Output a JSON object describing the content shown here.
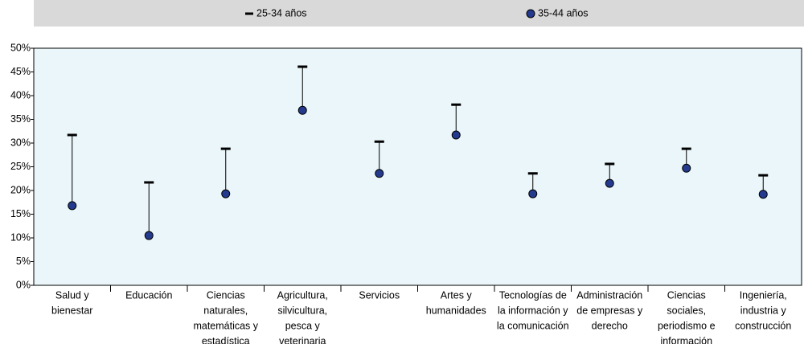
{
  "chart_data": {
    "type": "dot-range",
    "categories": [
      [
        "Salud y",
        "bienestar"
      ],
      [
        "Educación"
      ],
      [
        "Ciencias",
        "naturales,",
        "matemáticas y",
        "estadística"
      ],
      [
        "Agricultura,",
        "silvicultura,",
        "pesca y",
        "veterinaria"
      ],
      [
        "Servicios"
      ],
      [
        "Artes y",
        "humanidades"
      ],
      [
        "Tecnologías de",
        "la información y",
        "la comunicación"
      ],
      [
        "Administración",
        "de empresas y",
        "derecho"
      ],
      [
        "Ciencias",
        "sociales,",
        "periodismo e",
        "información"
      ],
      [
        "Ingeniería,",
        "industria y",
        "construcción"
      ]
    ],
    "series": [
      {
        "name": "25-34 años",
        "color": "#000000",
        "marker": "dash",
        "values": [
          31.7,
          21.7,
          28.8,
          46.1,
          30.3,
          38.1,
          23.6,
          25.6,
          28.8,
          23.2
        ]
      },
      {
        "name": "35-44 años",
        "color": "#233a8e",
        "marker": "circle",
        "values": [
          16.8,
          10.5,
          19.3,
          36.9,
          23.6,
          31.7,
          19.3,
          21.5,
          24.7,
          19.2
        ]
      }
    ],
    "ylim": [
      0,
      50
    ],
    "yticks": [
      {
        "value": 0,
        "label": "0%"
      },
      {
        "value": 5,
        "label": "5%"
      },
      {
        "value": 10,
        "label": "10%"
      },
      {
        "value": 15,
        "label": "15%"
      },
      {
        "value": 20,
        "label": "20%"
      },
      {
        "value": 25,
        "label": "25%"
      },
      {
        "value": 30,
        "label": "30%"
      },
      {
        "value": 35,
        "label": "35%"
      },
      {
        "value": 40,
        "label": "40%"
      },
      {
        "value": 45,
        "label": "45%"
      },
      {
        "value": 50,
        "label": "50%"
      }
    ],
    "legend": "top"
  }
}
